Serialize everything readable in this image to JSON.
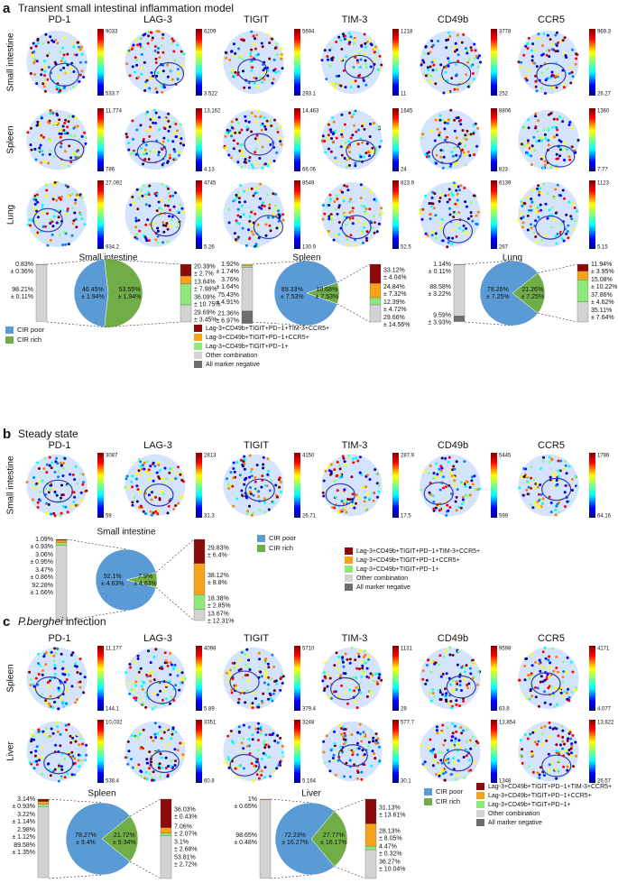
{
  "panels": [
    {
      "letter": "a",
      "title_parts": [
        "Transient small intestinal inflammation model"
      ],
      "markers": [
        "PD-1",
        "LAG-3",
        "TIGIT",
        "TIM-3",
        "CD49b",
        "CCR5"
      ],
      "rows": [
        {
          "tissue": "Small intestine",
          "scales": [
            [
              "9033",
              "533.7"
            ],
            [
              "6209",
              "3.522"
            ],
            [
              "5694",
              "293.1"
            ],
            [
              "1218",
              "11"
            ],
            [
              "3778",
              "252"
            ],
            [
              "969.3",
              "26.27"
            ]
          ]
        },
        {
          "tissue": "Spleen",
          "scales": [
            [
              "11,774",
              "786"
            ],
            [
              "13,162",
              "4.13"
            ],
            [
              "14,463",
              "66.06"
            ],
            [
              "1645",
              "24"
            ],
            [
              "8806",
              "823"
            ],
            [
              "1360",
              "7.77"
            ]
          ]
        },
        {
          "tissue": "Lung",
          "scales": [
            [
              "27,092",
              "934.2"
            ],
            [
              "4745",
              "5.26"
            ],
            [
              "8549",
              "130.9"
            ],
            [
              "823.9",
              "52.5"
            ],
            [
              "6139",
              "267"
            ],
            [
              "1123",
              "5.15"
            ]
          ]
        }
      ],
      "groups": [
        {
          "title": "Small intestine",
          "pie": [
            {
              "value": 46.45,
              "label": [
                "46.45%",
                "± 1.94%"
              ]
            },
            {
              "value": 53.55,
              "label": [
                "53.55%",
                "± 1.94%"
              ]
            }
          ],
          "left_bar": [
            {
              "value": 0.83,
              "label": [
                "0.83%",
                "± 0.36%"
              ],
              "color": "#8fe87a"
            },
            {
              "value": 98.21,
              "label": [
                "98.21%",
                "± 0.11%"
              ],
              "color": "#d3d3d3"
            }
          ],
          "right_bar": [
            {
              "value": 20.39,
              "label": [
                "20.39%",
                "± 2.7%"
              ],
              "color": "#8b0a0a"
            },
            {
              "value": 13.84,
              "label": [
                "13.84%",
                "± 7.98%"
              ],
              "color": "#f7a21b"
            },
            {
              "value": 36.09,
              "label": [
                "36.09%",
                "± 10.75%"
              ],
              "color": "#8fe87a"
            },
            {
              "value": 29.69,
              "label": [
                "29.69%",
                "± 3.45%"
              ],
              "color": "#d3d3d3"
            }
          ]
        },
        {
          "title": "Spleen",
          "pie": [
            {
              "value": 89.33,
              "label": [
                "89.33%",
                "± 7.53%"
              ]
            },
            {
              "value": 10.68,
              "label": [
                "10.68%",
                "± 7.53%"
              ]
            }
          ],
          "left_bar": [
            {
              "value": 1.92,
              "label": [
                "1.92%",
                "± 1.74%"
              ],
              "color": "#f7a21b"
            },
            {
              "value": 3.76,
              "label": [
                "3.76%",
                "± 1.64%"
              ],
              "color": "#8fe87a"
            },
            {
              "value": 75.43,
              "label": [
                "75.43%",
                "± 4.91%"
              ],
              "color": "#d3d3d3"
            },
            {
              "value": 21.36,
              "label": [
                "21.36%",
                "± 6.97%"
              ],
              "color": "#6e6e6e"
            }
          ],
          "right_bar": [
            {
              "value": 33.12,
              "label": [
                "33.12%",
                "± 4.04%"
              ],
              "color": "#8b0a0a"
            },
            {
              "value": 24.84,
              "label": [
                "24.84%",
                "± 7.32%"
              ],
              "color": "#f7a21b"
            },
            {
              "value": 12.39,
              "label": [
                "12.39%",
                "± 4.72%"
              ],
              "color": "#8fe87a"
            },
            {
              "value": 29.66,
              "label": [
                "29.66%",
                "± 14.56%"
              ],
              "color": "#d3d3d3"
            }
          ]
        },
        {
          "title": "Lung",
          "pie": [
            {
              "value": 78.26,
              "label": [
                "78.26%",
                "± 7.25%"
              ]
            },
            {
              "value": 21.26,
              "label": [
                "21.26%",
                "± 7.25%"
              ]
            }
          ],
          "left_bar": [
            {
              "value": 1.14,
              "label": [
                "1.14%",
                "± 0.11%"
              ],
              "color": "#8fe87a"
            },
            {
              "value": 88.58,
              "label": [
                "88.58%",
                "± 3.22%"
              ],
              "color": "#d3d3d3"
            },
            {
              "value": 9.59,
              "label": [
                "9.59%",
                "± 3.93%"
              ],
              "color": "#6e6e6e"
            }
          ],
          "right_bar": [
            {
              "value": 11.94,
              "label": [
                "11.94%",
                "± 3.95%"
              ],
              "color": "#8b0a0a"
            },
            {
              "value": 15.08,
              "label": [
                "15.08%",
                "± 10.22%"
              ],
              "color": "#f7a21b"
            },
            {
              "value": 37.86,
              "label": [
                "37.86%",
                "± 4.62%"
              ],
              "color": "#8fe87a"
            },
            {
              "value": 35.11,
              "label": [
                "35.11%",
                "± 7.64%"
              ],
              "color": "#d3d3d3"
            }
          ]
        }
      ],
      "legend_pie": [
        {
          "name": "CIR poor",
          "color": "#5b9bd5"
        },
        {
          "name": "CIR rich",
          "color": "#70ad47"
        }
      ],
      "legend_combo": [
        {
          "name": "Lag-3+CD49b+TIGIT+PD−1+TIM-3+CCR5+",
          "color": "#8b0a0a"
        },
        {
          "name": "Lag-3+CD49b+TIGIT+PD−1+CCR5+",
          "color": "#f7a21b"
        },
        {
          "name": "Lag-3+CD49b+TIGIT+PD−1+",
          "color": "#8fe87a"
        },
        {
          "name": "Other combination",
          "color": "#d3d3d3"
        },
        {
          "name": "All marker negative",
          "color": "#6e6e6e"
        }
      ]
    },
    {
      "letter": "b",
      "title_parts": [
        "Steady state"
      ],
      "markers": [
        "PD-1",
        "LAG-3",
        "TIGIT",
        "TIM-3",
        "CD49b",
        "CCR5"
      ],
      "rows": [
        {
          "tissue": "Small intestine",
          "scales": [
            [
              "3087",
              "59"
            ],
            [
              "2813",
              "31.3"
            ],
            [
              "4150",
              "26.71"
            ],
            [
              "287.9",
              "17.5"
            ],
            [
              "5445",
              "599"
            ],
            [
              "1786",
              "64.16"
            ]
          ]
        }
      ],
      "groups": [
        {
          "title": "Small intestine",
          "pie": [
            {
              "value": 92.1,
              "label": [
                "92.1%",
                "± 4.63%"
              ]
            },
            {
              "value": 7.9,
              "label": [
                "7.9%",
                "± 4.63%"
              ]
            }
          ],
          "left_bar": [
            {
              "value": 1.09,
              "label": [
                "1.09%",
                "± 0.93%"
              ],
              "color": "#8b0a0a"
            },
            {
              "value": 3.06,
              "label": [
                "3.06%",
                "± 0.95%"
              ],
              "color": "#f7a21b"
            },
            {
              "value": 3.47,
              "label": [
                "3.47%",
                "± 0.86%"
              ],
              "color": "#8fe87a"
            },
            {
              "value": 92.28,
              "label": [
                "92.28%",
                "± 1.66%"
              ],
              "color": "#d3d3d3"
            }
          ],
          "right_bar": [
            {
              "value": 29.83,
              "label": [
                "29.83%",
                "± 6.4%"
              ],
              "color": "#8b0a0a"
            },
            {
              "value": 38.12,
              "label": [
                "38.12%",
                "± 8.8%"
              ],
              "color": "#f7a21b"
            },
            {
              "value": 18.38,
              "label": [
                "18.38%",
                "± 2.85%"
              ],
              "color": "#8fe87a"
            },
            {
              "value": 13.67,
              "label": [
                "13.67%",
                "± 12.31%"
              ],
              "color": "#d3d3d3"
            }
          ]
        }
      ],
      "legend_pie": [
        {
          "name": "CIR poor",
          "color": "#5b9bd5"
        },
        {
          "name": "CIR rich",
          "color": "#70ad47"
        }
      ],
      "legend_combo": [
        {
          "name": "Lag-3+CD49b+TIGIT+PD−1+TIM-3+CCR5+",
          "color": "#8b0a0a"
        },
        {
          "name": "Lag-3+CD49b+TIGIT+PD−1+CCR5+",
          "color": "#f7a21b"
        },
        {
          "name": "Lag-3+CD49b+TIGIT+PD−1+",
          "color": "#8fe87a"
        },
        {
          "name": "Other combination",
          "color": "#d3d3d3"
        },
        {
          "name": "All marker negative",
          "color": "#6e6e6e"
        }
      ]
    },
    {
      "letter": "c",
      "title_parts": [
        "P.berghei",
        "infection"
      ],
      "markers": [
        "PD-1",
        "LAG-3",
        "TIGIT",
        "TIM-3",
        "CD49b",
        "CCR5"
      ],
      "rows": [
        {
          "tissue": "Spleen",
          "scales": [
            [
              "11,177",
              "144.1"
            ],
            [
              "4098",
              "5.89"
            ],
            [
              "5710",
              "379.4"
            ],
            [
              "1131",
              "28"
            ],
            [
              "9598",
              "63.8"
            ],
            [
              "4171",
              "4.077"
            ]
          ]
        },
        {
          "tissue": "Liver",
          "scales": [
            [
              "10,032",
              "538.4"
            ],
            [
              "3351",
              "60.8"
            ],
            [
              "3248",
              "5.164"
            ],
            [
              "577.7",
              "30.1"
            ],
            [
              "13,854",
              "1348"
            ],
            [
              "13,822",
              "26.57"
            ]
          ]
        }
      ],
      "groups": [
        {
          "title": "Spleen",
          "pie": [
            {
              "value": 78.27,
              "label": [
                "78.27%",
                "± 9.4%"
              ]
            },
            {
              "value": 21.72,
              "label": [
                "21.72%",
                "± 9.34%"
              ]
            }
          ],
          "left_bar": [
            {
              "value": 3.14,
              "label": [
                "3.14%",
                "± 0.93%"
              ],
              "color": "#8b0a0a"
            },
            {
              "value": 3.22,
              "label": [
                "3.22%",
                "± 1.14%"
              ],
              "color": "#f7a21b"
            },
            {
              "value": 2.98,
              "label": [
                "2.98%",
                "± 1.12%"
              ],
              "color": "#8fe87a"
            },
            {
              "value": 89.58,
              "label": [
                "89.58%",
                "± 1.35%"
              ],
              "color": "#d3d3d3"
            }
          ],
          "right_bar": [
            {
              "value": 36.03,
              "label": [
                "36.03%",
                "± 0.43%"
              ],
              "color": "#8b0a0a"
            },
            {
              "value": 7.06,
              "label": [
                "7.06%",
                "± 2.07%"
              ],
              "color": "#f7a21b"
            },
            {
              "value": 3.1,
              "label": [
                "3.1%",
                "± 2.68%"
              ],
              "color": "#8fe87a"
            },
            {
              "value": 53.81,
              "label": [
                "53.81%",
                "± 2.72%"
              ],
              "color": "#d3d3d3"
            }
          ]
        },
        {
          "title": "Liver",
          "pie": [
            {
              "value": 72.23,
              "label": [
                "72.23%",
                "± 16.27%"
              ]
            },
            {
              "value": 27.77,
              "label": [
                "27.77%",
                "± 16.17%"
              ]
            }
          ],
          "left_bar": [
            {
              "value": 1,
              "label": [
                "1%",
                "± 0.65%"
              ],
              "color": "#f7a21b"
            },
            {
              "value": 98.65,
              "label": [
                "98.65%",
                "± 0.48%"
              ],
              "color": "#d3d3d3"
            }
          ],
          "right_bar": [
            {
              "value": 31.13,
              "label": [
                "31.13%",
                "± 13.61%"
              ],
              "color": "#8b0a0a"
            },
            {
              "value": 28.13,
              "label": [
                "28.13%",
                "± 8.05%"
              ],
              "color": "#f7a21b"
            },
            {
              "value": 4.47,
              "label": [
                "4.47%",
                "± 0.32%"
              ],
              "color": "#8fe87a"
            },
            {
              "value": 36.27,
              "label": [
                "36.27%",
                "± 10.04%"
              ],
              "color": "#d3d3d3"
            }
          ]
        }
      ],
      "legend_pie": [
        {
          "name": "CIR poor",
          "color": "#5b9bd5"
        },
        {
          "name": "CIR rich",
          "color": "#70ad47"
        }
      ],
      "legend_combo": [
        {
          "name": "Lag-3+CD49b+TIGIT+PD−1+TIM-3+CCR5+",
          "color": "#8b0a0a"
        },
        {
          "name": "Lag-3+CD49b+TIGIT+PD−1+CCR5+",
          "color": "#f7a21b"
        },
        {
          "name": "Lag-3+CD49b+TIGIT+PD−1+",
          "color": "#8fe87a"
        },
        {
          "name": "Other combination",
          "color": "#d3d3d3"
        },
        {
          "name": "All marker negative",
          "color": "#6e6e6e"
        }
      ]
    }
  ]
}
